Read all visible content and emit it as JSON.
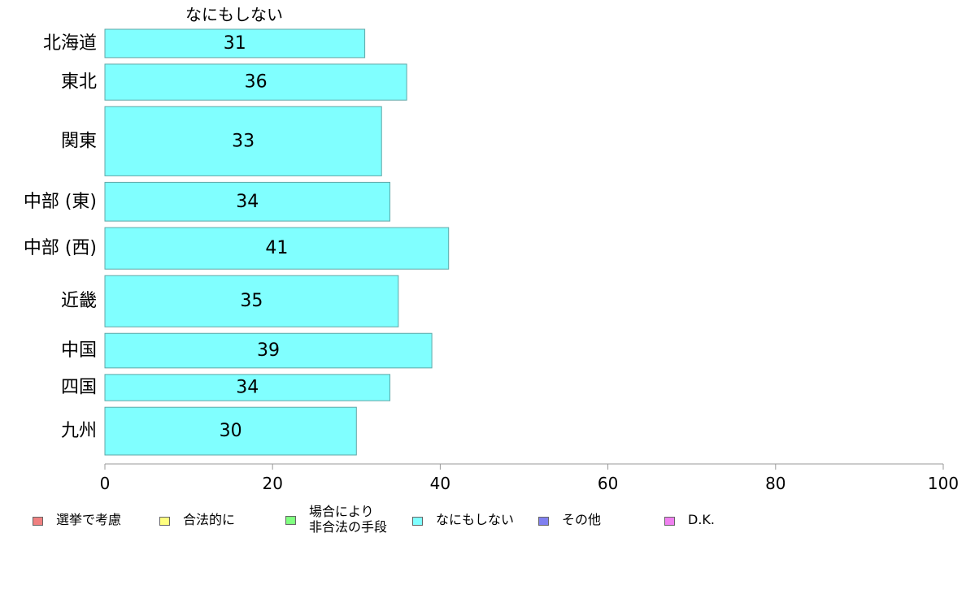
{
  "chart_data": {
    "type": "bar",
    "orientation": "horizontal",
    "series_label": "なにもしない",
    "categories": [
      "北海道",
      "東北",
      "関東",
      "中部 (東)",
      "中部 (西)",
      "近畿",
      "中国",
      "四国",
      "九州"
    ],
    "values": [
      31,
      36,
      33,
      34,
      41,
      35,
      39,
      34,
      30
    ],
    "relative_bar_thickness": [
      0.41,
      0.52,
      1.0,
      0.56,
      0.6,
      0.74,
      0.5,
      0.38,
      0.69
    ],
    "xlim": [
      0,
      100
    ],
    "xticks": [
      0,
      20,
      40,
      60,
      80,
      100
    ],
    "bar_color": "#80ffff",
    "bar_stroke": "#5fa7a7",
    "grid": false,
    "legend_position": "bottom",
    "legend": [
      {
        "label": "選挙で考慮",
        "color": "#f08080"
      },
      {
        "label": "合法的に",
        "color": "#ffff80"
      },
      {
        "label": "場合により\n非合法の手段",
        "color": "#80ff80"
      },
      {
        "label": "なにもしない",
        "color": "#80ffff"
      },
      {
        "label": "その他",
        "color": "#8080f0"
      },
      {
        "label": "D.K.",
        "color": "#f080f0"
      }
    ]
  }
}
